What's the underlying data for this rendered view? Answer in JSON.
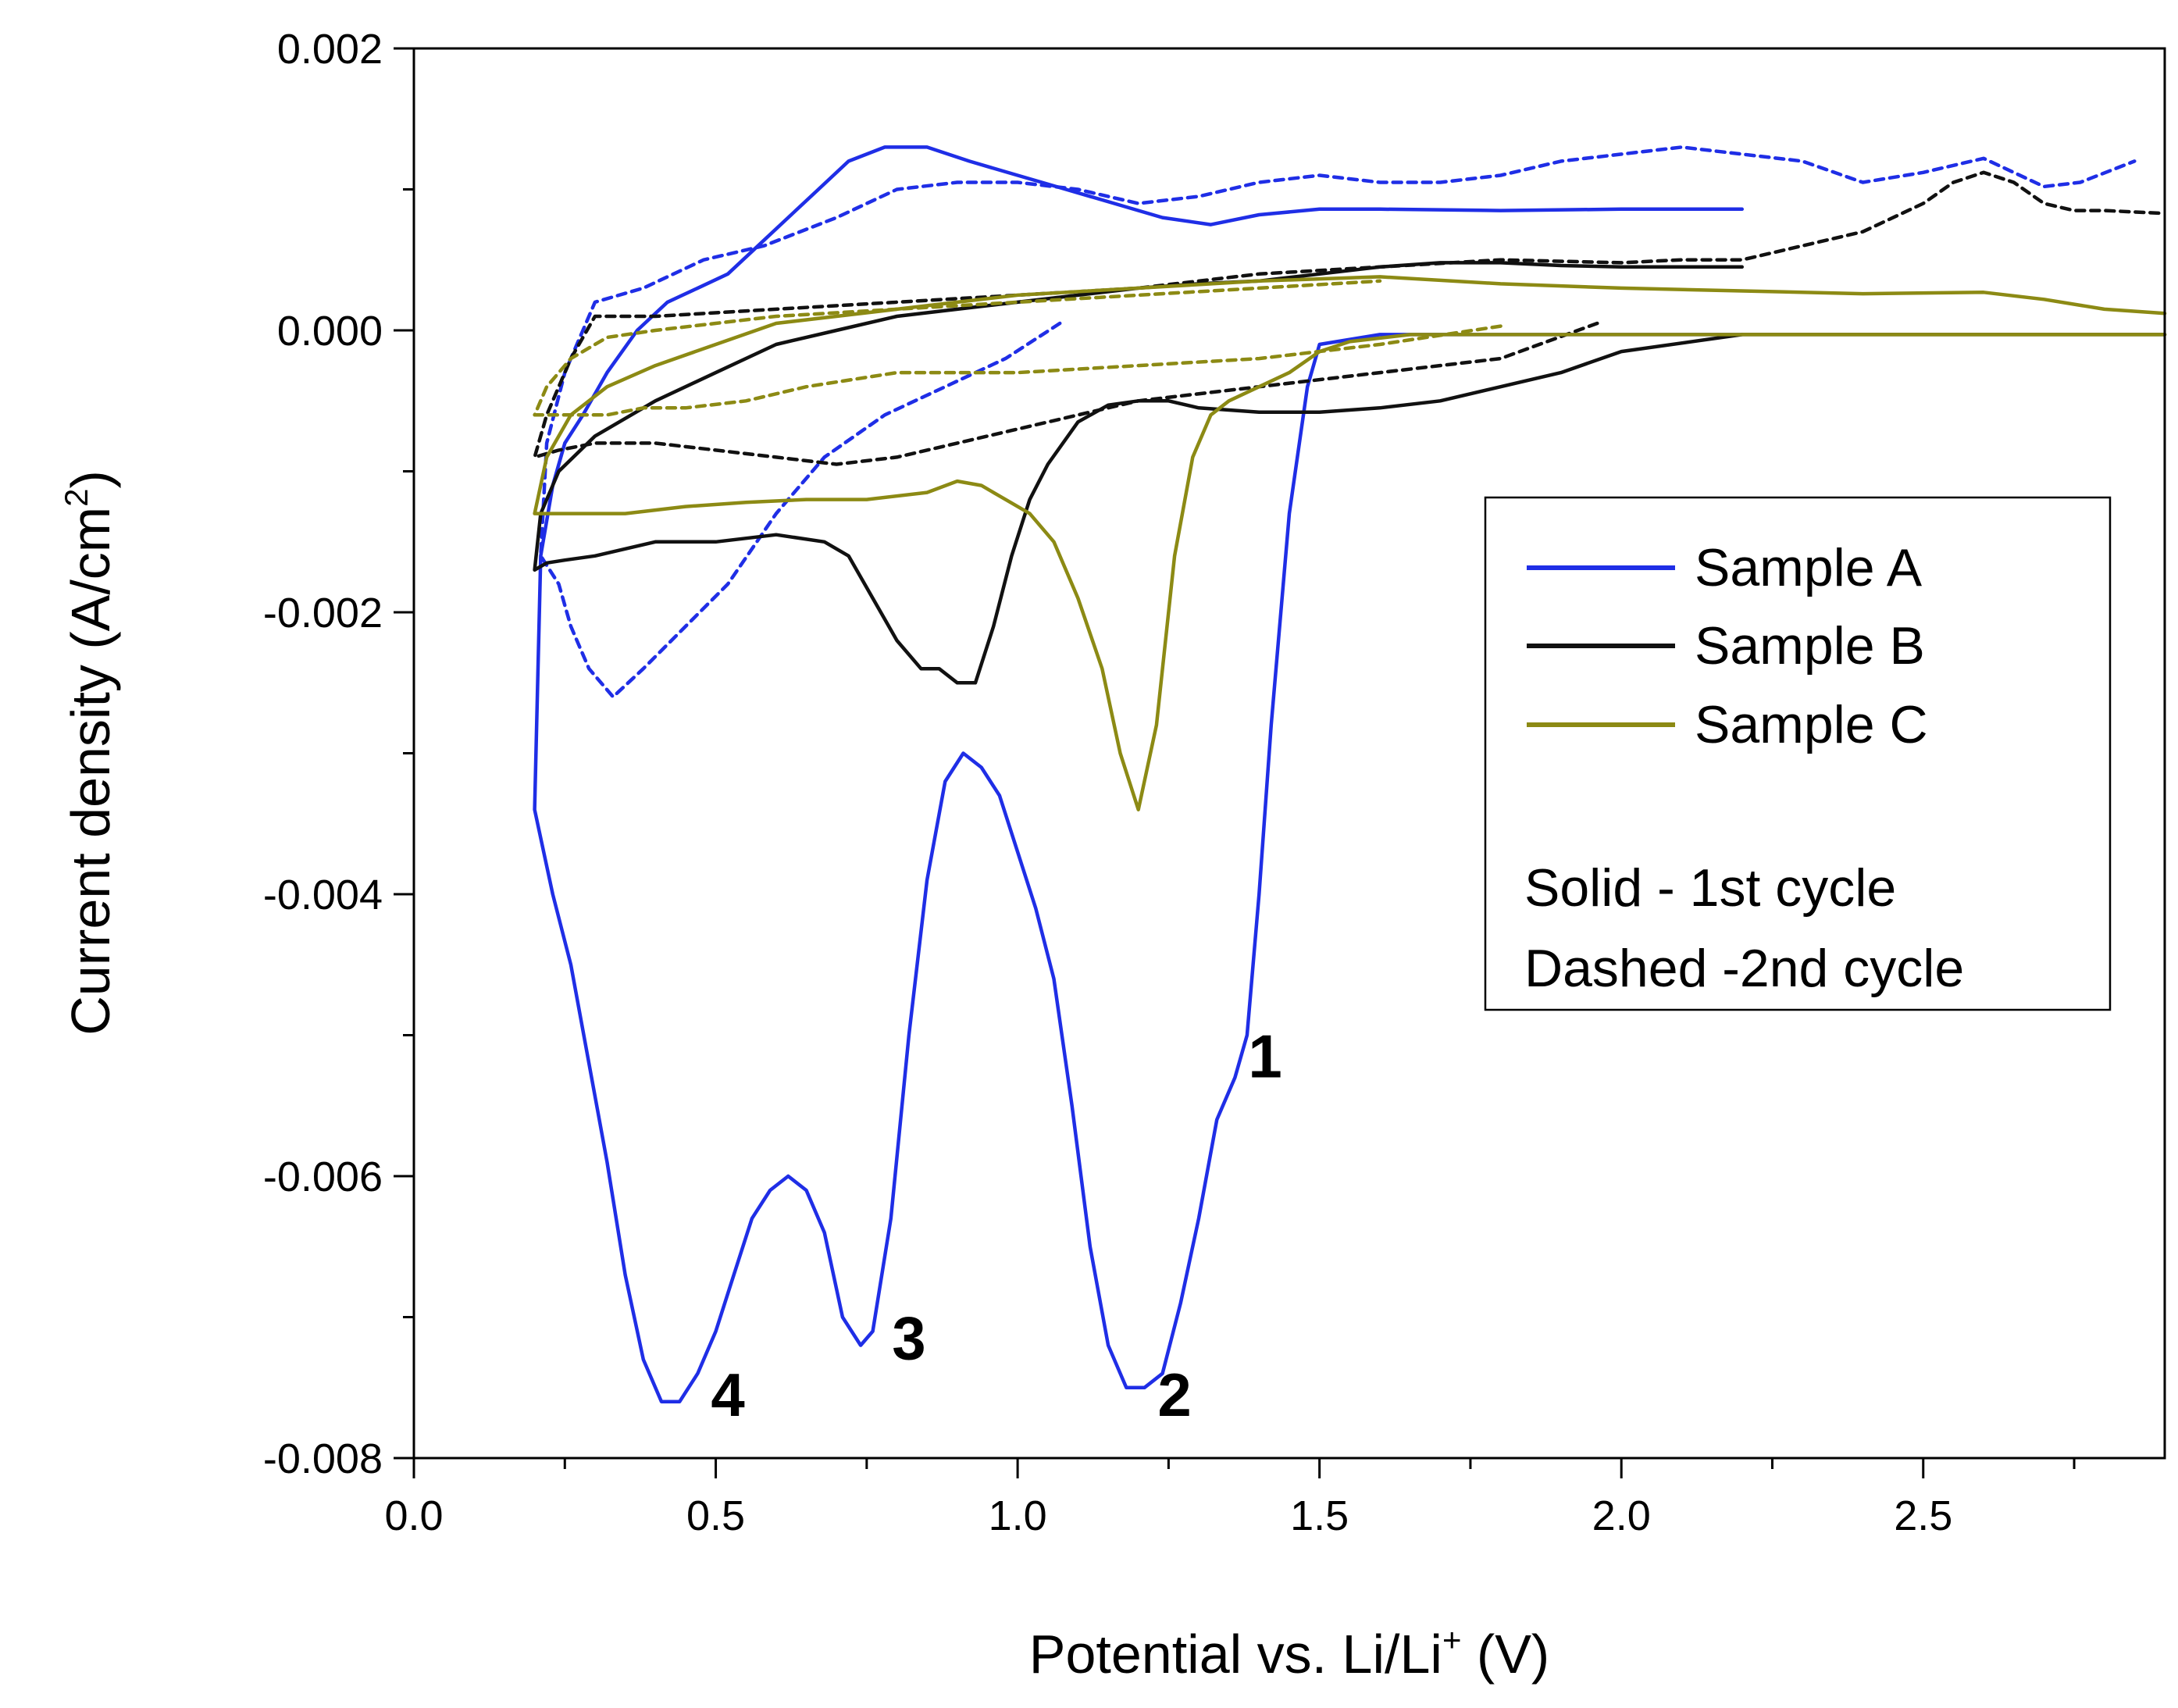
{
  "chart_data": {
    "type": "line",
    "xlabel_main": "Potential vs. Li/Li",
    "xlabel_sup": "+",
    "xlabel_tail": " (V)",
    "ylabel_main": "Current density (A/cm",
    "ylabel_sup": "2",
    "ylabel_tail": ")",
    "xlim": [
      0,
      2.9
    ],
    "ylim": [
      -0.008,
      0.002
    ],
    "x_ticks": [
      "0.0",
      "0.5",
      "1.0",
      "1.5",
      "2.0",
      "2.5"
    ],
    "y_ticks": [
      "0.002",
      "0.000",
      "-0.002",
      "-0.004",
      "-0.006",
      "-0.008"
    ],
    "legend_placement": "center-right",
    "legend_entries": [
      "Sample A",
      "Sample B",
      "Sample C"
    ],
    "legend_notes": [
      "Solid - 1st cycle",
      "Dashed -2nd cycle"
    ],
    "colors": {
      "sample_a": "#1f2ee6",
      "sample_b": "#111111",
      "sample_c": "#8c8a14"
    },
    "annotations": [
      {
        "text": "1",
        "x": 1.41,
        "y": -0.0053
      },
      {
        "text": "2",
        "x": 1.26,
        "y": -0.0077
      },
      {
        "text": "3",
        "x": 0.82,
        "y": -0.0073
      },
      {
        "text": "4",
        "x": 0.52,
        "y": -0.0077
      }
    ],
    "series": [
      {
        "sample": 0,
        "style": "solid",
        "x": [
          2.2,
          1.6,
          1.5,
          1.48,
          1.45,
          1.42,
          1.4,
          1.38,
          1.36,
          1.33,
          1.3,
          1.27,
          1.24,
          1.21,
          1.18,
          1.15,
          1.12,
          1.09,
          1.06,
          1.03,
          1.0,
          0.97,
          0.94,
          0.91,
          0.88,
          0.85,
          0.82,
          0.79,
          0.76,
          0.74,
          0.71,
          0.68,
          0.65,
          0.62,
          0.59,
          0.56,
          0.53,
          0.5,
          0.47,
          0.44,
          0.41,
          0.38,
          0.35,
          0.32,
          0.29,
          0.26,
          0.23,
          0.2,
          0.21,
          0.23,
          0.25,
          0.28,
          0.32,
          0.37,
          0.42,
          0.47,
          0.52,
          0.57,
          0.62,
          0.67,
          0.72,
          0.78,
          0.85,
          0.92,
          1.0,
          1.08,
          1.16,
          1.24,
          1.32,
          1.4,
          1.5,
          1.6,
          1.8,
          2.0,
          2.2
        ],
        "y": [
          -3e-05,
          -3e-05,
          -0.0001,
          -0.0004,
          -0.0013,
          -0.0028,
          -0.004,
          -0.005,
          -0.0053,
          -0.0056,
          -0.0063,
          -0.0069,
          -0.0074,
          -0.0075,
          -0.0075,
          -0.0072,
          -0.0065,
          -0.0055,
          -0.0046,
          -0.0041,
          -0.0037,
          -0.0033,
          -0.0031,
          -0.003,
          -0.0032,
          -0.0039,
          -0.005,
          -0.0063,
          -0.0071,
          -0.0072,
          -0.007,
          -0.0064,
          -0.0061,
          -0.006,
          -0.0061,
          -0.0063,
          -0.0067,
          -0.0071,
          -0.0074,
          -0.0076,
          -0.0076,
          -0.0073,
          -0.0067,
          -0.0059,
          -0.0052,
          -0.0045,
          -0.004,
          -0.0034,
          -0.0016,
          -0.0011,
          -0.0008,
          -0.0006,
          -0.0003,
          0.0,
          0.0002,
          0.0003,
          0.0004,
          0.0006,
          0.0008,
          0.001,
          0.0012,
          0.0013,
          0.0013,
          0.0012,
          0.0011,
          0.001,
          0.0009,
          0.0008,
          0.00075,
          0.00082,
          0.00086,
          0.00086,
          0.00085,
          0.00086,
          0.00086
        ]
      },
      {
        "sample": 0,
        "style": "dashed",
        "x": [
          1.07,
          0.98,
          0.88,
          0.78,
          0.68,
          0.6,
          0.52,
          0.45,
          0.38,
          0.33,
          0.29,
          0.26,
          0.24,
          0.21,
          0.22,
          0.25,
          0.3,
          0.38,
          0.48,
          0.58,
          0.7,
          0.8,
          0.9,
          1.0,
          1.1,
          1.2,
          1.3,
          1.4,
          1.5,
          1.6,
          1.7,
          1.8,
          1.9,
          2.0,
          2.1,
          2.2,
          2.3,
          2.4,
          2.5,
          2.6,
          2.7,
          2.76,
          2.85
        ],
        "y": [
          5e-05,
          -0.0002,
          -0.0004,
          -0.0006,
          -0.0009,
          -0.0013,
          -0.0018,
          -0.0021,
          -0.0024,
          -0.0026,
          -0.0024,
          -0.0021,
          -0.0018,
          -0.0016,
          -0.0008,
          -0.0003,
          0.0002,
          0.0003,
          0.0005,
          0.0006,
          0.0008,
          0.001,
          0.00105,
          0.00105,
          0.001,
          0.0009,
          0.00095,
          0.00105,
          0.0011,
          0.00105,
          0.00105,
          0.0011,
          0.0012,
          0.00125,
          0.0013,
          0.00125,
          0.0012,
          0.00105,
          0.00112,
          0.00122,
          0.00102,
          0.00105,
          0.0012
        ]
      },
      {
        "sample": 1,
        "style": "solid",
        "x": [
          2.9,
          2.4,
          2.2,
          2.0,
          1.9,
          1.8,
          1.7,
          1.6,
          1.5,
          1.4,
          1.3,
          1.25,
          1.2,
          1.15,
          1.1,
          1.05,
          1.02,
          0.99,
          0.96,
          0.93,
          0.9,
          0.87,
          0.84,
          0.8,
          0.76,
          0.72,
          0.68,
          0.6,
          0.5,
          0.4,
          0.3,
          0.25,
          0.22,
          0.2,
          0.21,
          0.24,
          0.3,
          0.4,
          0.5,
          0.6,
          0.7,
          0.8,
          0.9,
          1.0,
          1.1,
          1.2,
          1.3,
          1.4,
          1.5,
          1.6,
          1.7,
          1.8,
          1.9,
          2.0,
          2.1,
          2.2
        ],
        "y": [
          -3e-05,
          -3e-05,
          -3e-05,
          -0.00015,
          -0.0003,
          -0.0004,
          -0.0005,
          -0.00055,
          -0.00058,
          -0.00058,
          -0.00055,
          -0.0005,
          -0.0005,
          -0.00053,
          -0.00065,
          -0.00095,
          -0.0012,
          -0.0016,
          -0.0021,
          -0.0025,
          -0.0025,
          -0.0024,
          -0.0024,
          -0.0022,
          -0.0019,
          -0.0016,
          -0.0015,
          -0.00145,
          -0.0015,
          -0.0015,
          -0.0016,
          -0.00163,
          -0.00165,
          -0.0017,
          -0.0013,
          -0.001,
          -0.00075,
          -0.0005,
          -0.0003,
          -0.0001,
          0.0,
          0.0001,
          0.00015,
          0.0002,
          0.00025,
          0.0003,
          0.00033,
          0.00035,
          0.0004,
          0.00045,
          0.00048,
          0.00048,
          0.00046,
          0.00045,
          0.00045,
          0.00045
        ]
      },
      {
        "sample": 1,
        "style": "dashed",
        "x": [
          1.96,
          1.8,
          1.6,
          1.4,
          1.2,
          1.0,
          0.9,
          0.8,
          0.7,
          0.6,
          0.5,
          0.4,
          0.3,
          0.24,
          0.2,
          0.22,
          0.26,
          0.3,
          0.4,
          0.6,
          0.8,
          1.0,
          1.2,
          1.4,
          1.6,
          1.8,
          2.0,
          2.1,
          2.2,
          2.3,
          2.4,
          2.5,
          2.55,
          2.6,
          2.65,
          2.7,
          2.75,
          2.8,
          2.9
        ],
        "y": [
          5e-05,
          -0.0002,
          -0.0003,
          -0.0004,
          -0.0005,
          -0.0007,
          -0.0008,
          -0.0009,
          -0.00095,
          -0.0009,
          -0.00085,
          -0.0008,
          -0.0008,
          -0.00085,
          -0.0009,
          -0.0006,
          -0.0002,
          0.0001,
          0.0001,
          0.00015,
          0.0002,
          0.00025,
          0.0003,
          0.0004,
          0.00045,
          0.0005,
          0.00048,
          0.0005,
          0.0005,
          0.0006,
          0.0007,
          0.0009,
          0.00105,
          0.00112,
          0.00105,
          0.0009,
          0.00085,
          0.00085,
          0.00083
        ]
      },
      {
        "sample": 2,
        "style": "solid",
        "x": [
          2.9,
          2.0,
          1.8,
          1.65,
          1.55,
          1.5,
          1.45,
          1.4,
          1.35,
          1.32,
          1.29,
          1.26,
          1.23,
          1.2,
          1.17,
          1.14,
          1.1,
          1.06,
          1.02,
          0.98,
          0.94,
          0.9,
          0.85,
          0.75,
          0.65,
          0.55,
          0.45,
          0.35,
          0.25,
          0.2,
          0.22,
          0.26,
          0.32,
          0.4,
          0.5,
          0.6,
          0.7,
          0.8,
          0.9,
          1.0,
          1.2,
          1.4,
          1.6,
          1.8,
          2.0,
          2.2,
          2.4,
          2.6,
          2.7,
          2.8,
          2.9
        ],
        "y": [
          -3e-05,
          -3e-05,
          -3e-05,
          -3e-05,
          -8e-05,
          -0.00015,
          -0.0003,
          -0.0004,
          -0.0005,
          -0.0006,
          -0.0009,
          -0.0016,
          -0.0028,
          -0.0034,
          -0.003,
          -0.0024,
          -0.0019,
          -0.0015,
          -0.0013,
          -0.0012,
          -0.0011,
          -0.00107,
          -0.00115,
          -0.0012,
          -0.0012,
          -0.00122,
          -0.00125,
          -0.0013,
          -0.0013,
          -0.0013,
          -0.0009,
          -0.0006,
          -0.0004,
          -0.00025,
          -0.0001,
          5e-05,
          0.0001,
          0.00015,
          0.0002,
          0.00025,
          0.0003,
          0.00035,
          0.00038,
          0.00033,
          0.0003,
          0.00028,
          0.00026,
          0.00027,
          0.00022,
          0.00015,
          0.00012
        ]
      },
      {
        "sample": 2,
        "style": "dashed",
        "x": [
          1.8,
          1.6,
          1.4,
          1.2,
          1.0,
          0.8,
          0.65,
          0.55,
          0.45,
          0.38,
          0.32,
          0.26,
          0.22,
          0.2,
          0.22,
          0.26,
          0.32,
          0.4,
          0.5,
          0.6,
          0.8,
          1.0,
          1.2,
          1.4,
          1.6
        ],
        "y": [
          3e-05,
          -0.0001,
          -0.0002,
          -0.00025,
          -0.0003,
          -0.0003,
          -0.0004,
          -0.0005,
          -0.00055,
          -0.00055,
          -0.0006,
          -0.0006,
          -0.0006,
          -0.0006,
          -0.0004,
          -0.0002,
          -5e-05,
          0.0,
          5e-05,
          0.0001,
          0.00015,
          0.0002,
          0.00025,
          0.0003,
          0.00035
        ]
      }
    ]
  }
}
